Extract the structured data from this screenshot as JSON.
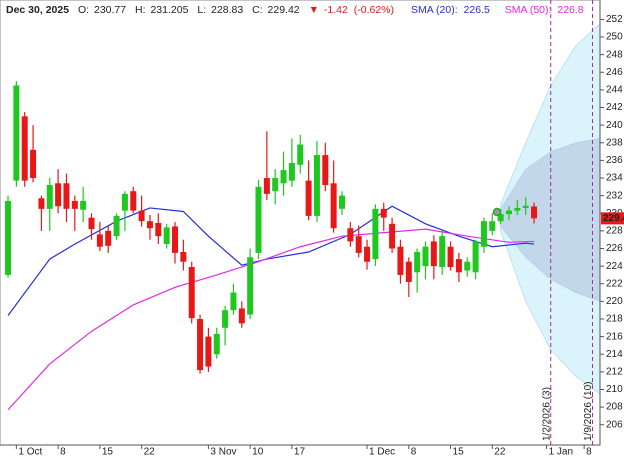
{
  "chart_data": {
    "type": "candlestick",
    "date": "Dec 30, 2025",
    "ohlc_labels": [
      "O:",
      "H:",
      "L:",
      "C:"
    ],
    "arrow": "▼",
    "change": -1.42,
    "change_pct": {
      "value": -0.62,
      "label": "(-0.62%)"
    },
    "up_color": "#1ec81e",
    "down_color": "#e81818",
    "open": [
      223,
      233.7,
      241,
      237.2,
      231.7,
      230.5,
      233.4,
      233.4,
      231.4,
      230.4,
      229.5,
      227.6,
      228,
      227.4,
      230.3,
      232.5,
      230.3,
      229.1,
      228.9,
      226.5,
      228.5,
      225.6,
      223.9,
      218,
      216,
      214,
      217,
      219,
      219.2,
      218.5,
      225.5,
      234,
      232.5,
      233.4,
      233.7,
      235.5,
      233.7,
      229.7,
      236.6,
      233.4,
      230.5,
      228.3,
      227.4,
      226.2,
      224.8,
      230.5,
      228.8,
      226.2,
      224.5,
      223.3,
      224,
      226.8,
      223.9,
      226.2,
      224.8,
      223.5,
      223.3,
      226.2,
      228,
      229.1,
      229.9,
      230.3,
      230.6,
      230.77
    ],
    "high": [
      232,
      245,
      241.5,
      240,
      232,
      234,
      235,
      234.5,
      232,
      233,
      230,
      229,
      228.5,
      230,
      232.5,
      233,
      232,
      229.8,
      230,
      228.8,
      229,
      227,
      224.5,
      218.5,
      217,
      217,
      219.5,
      222,
      220,
      226,
      233.8,
      239.3,
      235,
      237,
      238.5,
      238.9,
      236,
      238.2,
      238,
      236,
      232.5,
      229,
      228.6,
      227,
      231,
      231.2,
      229.5,
      227,
      225,
      226,
      226.8,
      227.5,
      228,
      226.8,
      225.5,
      225,
      227,
      229.5,
      230,
      230.5,
      230.8,
      231.5,
      231.8,
      231.205
    ],
    "low": [
      222.7,
      233,
      233,
      233.5,
      228,
      228,
      230,
      229,
      228,
      229,
      227,
      225.7,
      225.5,
      227,
      228,
      230,
      228.5,
      227,
      226.5,
      226,
      224.3,
      223.5,
      217.5,
      211.8,
      212,
      213.5,
      215,
      218.5,
      217,
      218,
      224.8,
      231.5,
      231,
      232,
      233,
      234.5,
      229.2,
      229,
      232.5,
      227.8,
      229.8,
      226.2,
      225,
      223.6,
      224,
      228,
      225.5,
      222,
      220.5,
      221,
      222.5,
      222.5,
      223,
      223.5,
      222.2,
      222.8,
      222.5,
      225.5,
      227.5,
      228.8,
      229.2,
      229.8,
      229.8,
      228.83
    ],
    "close": [
      231.4,
      244.5,
      233.7,
      234,
      230.5,
      233.2,
      230.8,
      230.5,
      230.5,
      231.4,
      228.2,
      226.2,
      226.3,
      229.7,
      232.2,
      230.3,
      229.1,
      228.3,
      227.4,
      228.4,
      225.5,
      224.5,
      218.1,
      212.2,
      212.6,
      216.3,
      219,
      221,
      217.5,
      225,
      233,
      232.2,
      234,
      234.9,
      235.7,
      237.8,
      229.7,
      236.6,
      233.2,
      228.3,
      232,
      226.8,
      225.5,
      224.5,
      230.5,
      229.5,
      226,
      223,
      222.2,
      225.6,
      226.2,
      224,
      227.4,
      223.9,
      223.3,
      224.5,
      226.8,
      229.1,
      229.1,
      229.9,
      230.3,
      230.6,
      230.84,
      229.42
    ],
    "series": [
      {
        "name": "SMA (20):",
        "color": "#2430d8",
        "x": [
          0,
          5,
          8,
          13,
          17,
          21,
          24,
          28,
          31,
          36,
          41,
          46,
          50,
          54,
          58,
          62,
          63
        ],
        "values": [
          218.4,
          224.8,
          226.5,
          229.1,
          230.6,
          230.2,
          227.4,
          224.1,
          224.8,
          225.6,
          227.6,
          230.8,
          228.8,
          227.4,
          226.2,
          226.6,
          226.5
        ]
      },
      {
        "name": "SMA (50):",
        "color": "#e628e6",
        "x": [
          0,
          5,
          10,
          15,
          20,
          25,
          30,
          35,
          40,
          45,
          50,
          55,
          60,
          63
        ],
        "values": [
          207.7,
          212.9,
          216.6,
          219.6,
          221.6,
          223,
          224.5,
          226.2,
          227.4,
          227.8,
          228.2,
          227.4,
          226.7,
          226.8
        ]
      }
    ],
    "forecast": {
      "x": [
        59,
        62,
        65,
        68,
        70.9
      ],
      "outer_upper": [
        231,
        238,
        244.5,
        249,
        251.5
      ],
      "outer_lower": [
        228,
        220,
        214.5,
        211.5,
        209.5
      ],
      "inner_upper": [
        230.5,
        235,
        237,
        238,
        238.5
      ],
      "inner_lower": [
        228.5,
        225,
        222.5,
        221,
        220
      ]
    },
    "markers": [
      {
        "x": 65,
        "label": "1/2/2026 (3)"
      },
      {
        "x": 70,
        "label": "1/9/2026 (10)"
      }
    ],
    "xlim": [
      -0.96,
      70.9
    ],
    "xticks": [
      {
        "value": 1,
        "label": "1 Oct"
      },
      {
        "value": 6,
        "label": "8"
      },
      {
        "value": 11,
        "label": "15"
      },
      {
        "value": 16,
        "label": "22"
      },
      {
        "value": 24,
        "label": "3 Nov"
      },
      {
        "value": 29,
        "label": "10"
      },
      {
        "value": 34,
        "label": "17"
      },
      {
        "value": 43,
        "label": "1 Dec"
      },
      {
        "value": 48,
        "label": "8"
      },
      {
        "value": 53,
        "label": "15"
      },
      {
        "value": 58,
        "label": "22"
      },
      {
        "value": 64.5,
        "label": "1 Jan"
      },
      {
        "value": 69,
        "label": "8"
      }
    ],
    "ylim": [
      203.7,
      254.2
    ],
    "yticks": [
      206,
      208,
      210,
      212,
      214,
      216,
      218,
      220,
      222,
      224,
      226,
      228,
      230,
      232,
      234,
      236,
      238,
      240,
      242,
      244,
      246,
      248,
      250,
      252
    ]
  }
}
